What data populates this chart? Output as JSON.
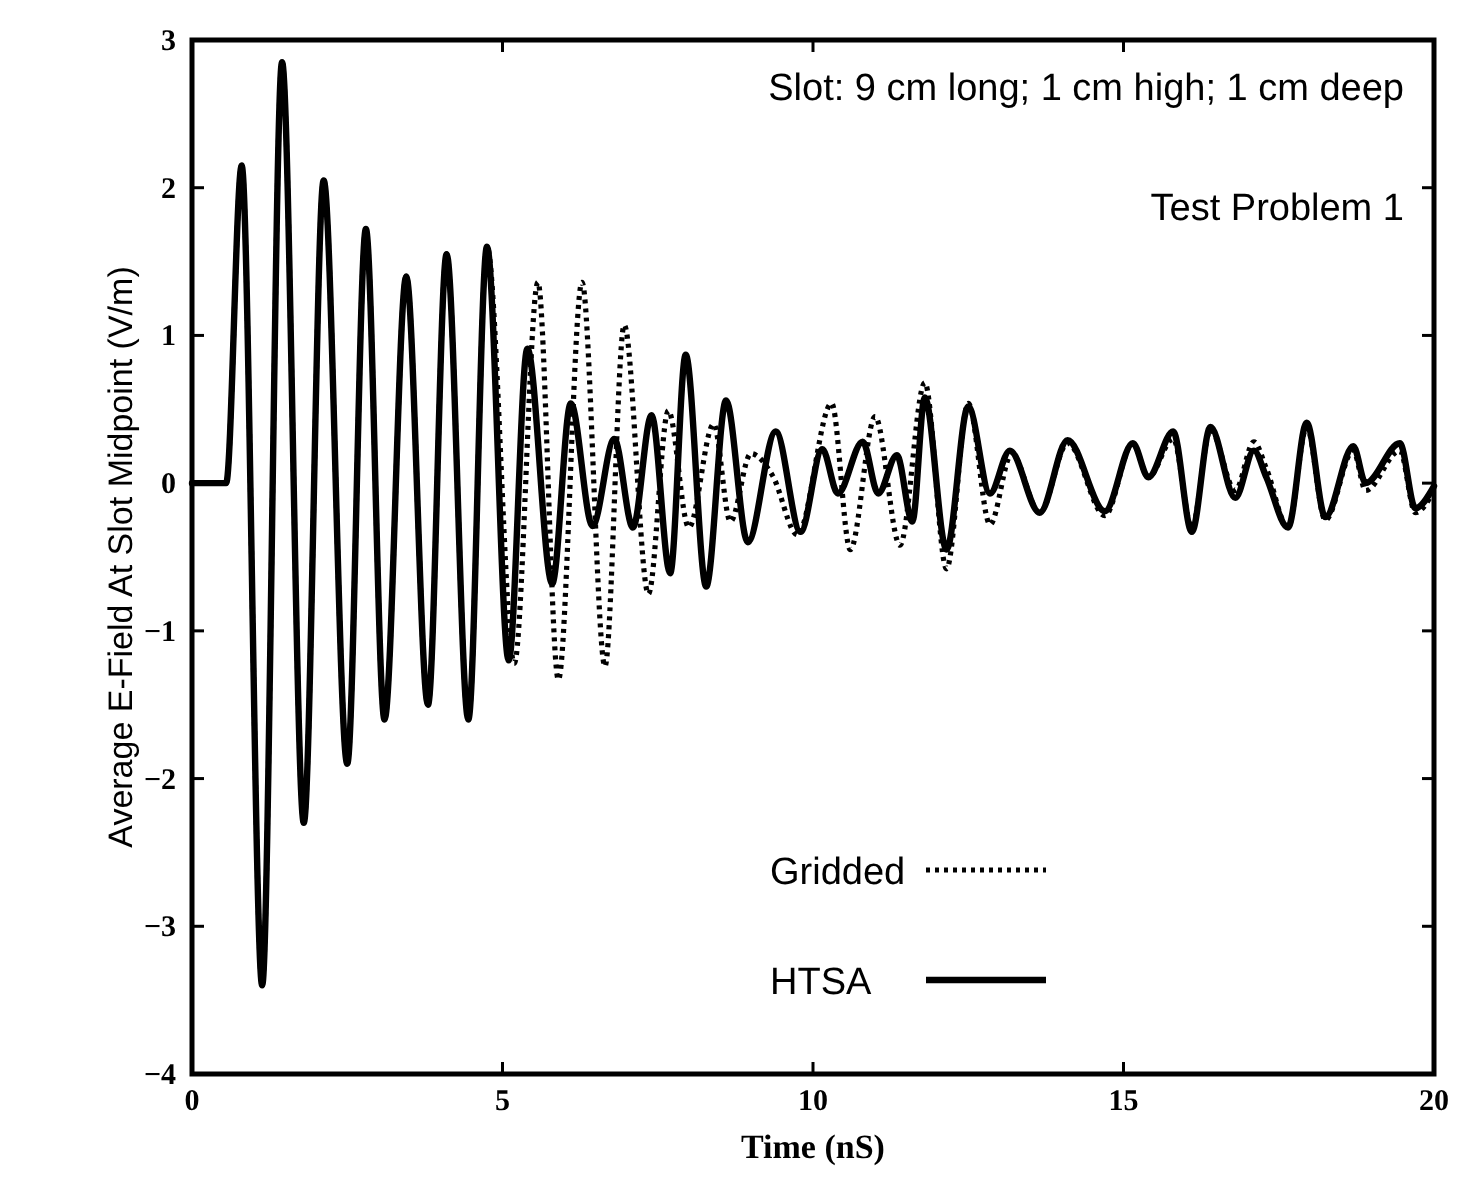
{
  "chart_data": {
    "type": "line",
    "xlabel": "Time (nS)",
    "ylabel": "Average E-Field At Slot Midpoint  (V/m)",
    "xlim": [
      0,
      20
    ],
    "ylim": [
      -4,
      3
    ],
    "xticks": [
      0,
      5,
      10,
      15,
      20
    ],
    "yticks": [
      -4,
      -3,
      -2,
      -1,
      0,
      1,
      2,
      3
    ],
    "grid": false,
    "legend": "bottom right",
    "marker": "none",
    "annotations": [
      "Slot: 9 cm long; 1 cm high; 1 cm deep",
      "Test Problem 1"
    ],
    "series": [
      {
        "name": "Gridded",
        "color": "#000000",
        "line_style": "dotted",
        "x": [
          0,
          0.55,
          0.8,
          1.13,
          1.45,
          1.8,
          2.12,
          2.5,
          2.8,
          3.1,
          3.45,
          3.8,
          4.1,
          4.45,
          4.75,
          5.19,
          5.57,
          5.9,
          6.28,
          6.65,
          6.96,
          7.35,
          7.67,
          8.0,
          8.4,
          8.67,
          9.0,
          9.35,
          9.75,
          10.3,
          10.6,
          11.0,
          11.4,
          11.8,
          12.15,
          12.5,
          12.85,
          13.2,
          13.65,
          14.1,
          14.7,
          15.15,
          15.4,
          15.8,
          16.1,
          16.4,
          16.8,
          17.1,
          17.3,
          17.65,
          17.95,
          18.25,
          18.7,
          18.9,
          19.45,
          19.7,
          20
        ],
        "values": [
          0,
          0,
          2.15,
          -3.4,
          2.85,
          -2.3,
          2.05,
          -1.9,
          1.72,
          -1.6,
          1.4,
          -1.5,
          1.55,
          -1.6,
          1.6,
          -1.22,
          1.36,
          -1.33,
          1.36,
          -1.24,
          1.07,
          -0.75,
          0.49,
          -0.3,
          0.4,
          -0.26,
          0.2,
          0.05,
          -0.35,
          0.54,
          -0.45,
          0.45,
          -0.42,
          0.68,
          -0.58,
          0.54,
          -0.28,
          0.2,
          -0.2,
          0.27,
          -0.22,
          0.27,
          0.04,
          0.3,
          -0.3,
          0.36,
          -0.05,
          0.28,
          0.1,
          -0.3,
          0.38,
          -0.25,
          0.22,
          -0.05,
          0.22,
          -0.2,
          -0.05
        ]
      },
      {
        "name": "HTSA",
        "color": "#000000",
        "line_style": "solid",
        "x": [
          0,
          0.55,
          0.8,
          1.13,
          1.45,
          1.8,
          2.12,
          2.5,
          2.8,
          3.1,
          3.45,
          3.8,
          4.1,
          4.45,
          4.75,
          5.1,
          5.4,
          5.8,
          6.1,
          6.45,
          6.8,
          7.1,
          7.4,
          7.7,
          7.95,
          8.28,
          8.6,
          8.95,
          9.4,
          9.8,
          10.15,
          10.4,
          10.8,
          11.05,
          11.35,
          11.6,
          11.8,
          12.15,
          12.5,
          12.85,
          13.17,
          13.65,
          14.1,
          14.7,
          15.15,
          15.4,
          15.8,
          16.1,
          16.4,
          16.8,
          17.1,
          17.3,
          17.65,
          17.95,
          18.25,
          18.7,
          18.9,
          19.45,
          19.7,
          20
        ],
        "values": [
          0,
          0,
          2.15,
          -3.4,
          2.85,
          -2.3,
          2.05,
          -1.9,
          1.72,
          -1.6,
          1.4,
          -1.5,
          1.55,
          -1.6,
          1.6,
          -1.2,
          0.91,
          -0.68,
          0.54,
          -0.29,
          0.3,
          -0.3,
          0.46,
          -0.61,
          0.87,
          -0.7,
          0.56,
          -0.4,
          0.35,
          -0.33,
          0.23,
          -0.07,
          0.28,
          -0.07,
          0.19,
          -0.26,
          0.58,
          -0.45,
          0.52,
          -0.07,
          0.22,
          -0.2,
          0.29,
          -0.19,
          0.27,
          0.04,
          0.35,
          -0.33,
          0.38,
          -0.1,
          0.22,
          0.04,
          -0.3,
          0.41,
          -0.23,
          0.25,
          0,
          0.27,
          -0.17,
          -0.02
        ]
      }
    ]
  }
}
